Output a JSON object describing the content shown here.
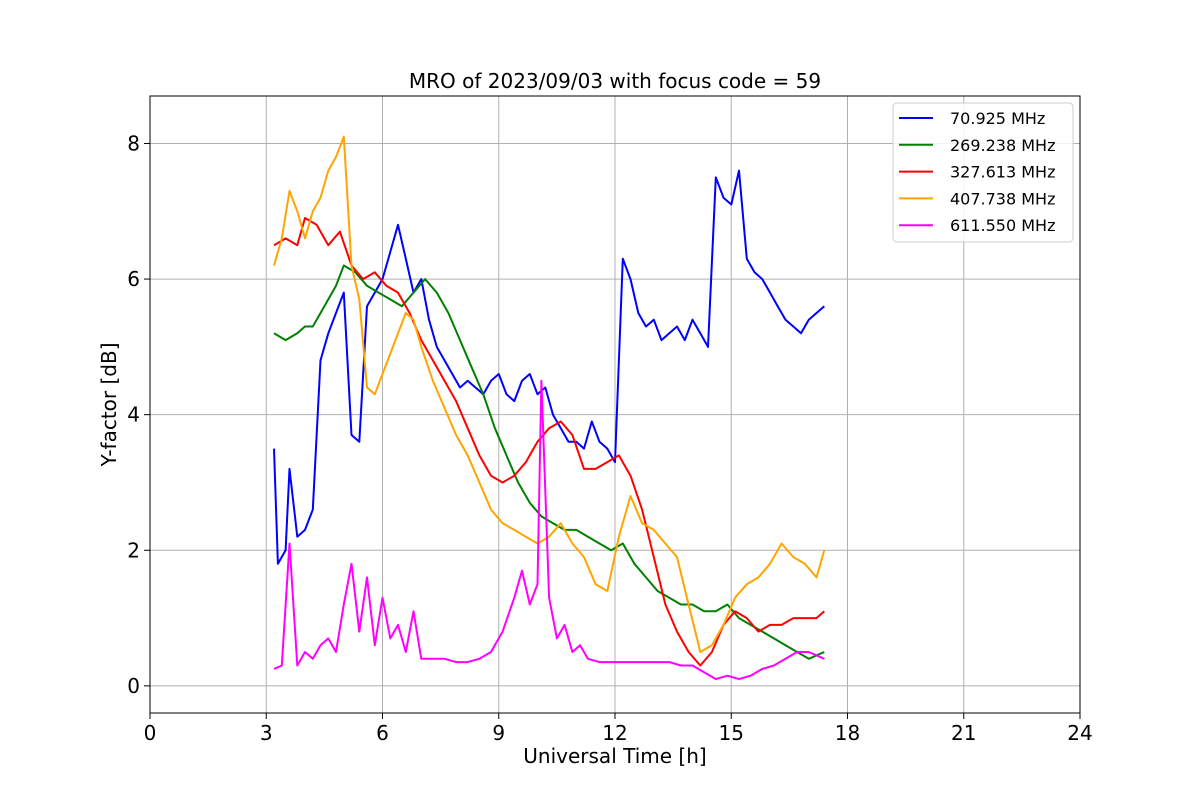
{
  "chart_data": {
    "type": "line",
    "title": "MRO of 2023/09/03 with focus code = 59",
    "xlabel": "Universal Time [h]",
    "ylabel": "Y-factor [dB]",
    "xlim": [
      0,
      24
    ],
    "ylim": [
      -0.4,
      8.7
    ],
    "xticks": [
      0,
      3,
      6,
      9,
      12,
      15,
      18,
      21,
      24
    ],
    "yticks": [
      0,
      2,
      4,
      6,
      8
    ],
    "grid": true,
    "legend_position": "top-right",
    "series": [
      {
        "name": " 70.925 MHz",
        "color": "#0000ff",
        "x": [
          3.2,
          3.3,
          3.5,
          3.6,
          3.8,
          4.0,
          4.2,
          4.4,
          4.6,
          4.8,
          5.0,
          5.2,
          5.4,
          5.6,
          5.8,
          6.0,
          6.2,
          6.4,
          6.6,
          6.8,
          7.0,
          7.2,
          7.4,
          7.6,
          7.8,
          8.0,
          8.2,
          8.4,
          8.6,
          8.8,
          9.0,
          9.2,
          9.4,
          9.6,
          9.8,
          10.0,
          10.2,
          10.4,
          10.6,
          10.8,
          11.0,
          11.2,
          11.4,
          11.6,
          11.8,
          12.0,
          12.2,
          12.4,
          12.6,
          12.8,
          13.0,
          13.2,
          13.4,
          13.6,
          13.8,
          14.0,
          14.2,
          14.4,
          14.6,
          14.8,
          15.0,
          15.2,
          15.4,
          15.6,
          15.8,
          16.0,
          16.2,
          16.4,
          16.6,
          16.8,
          17.0,
          17.2,
          17.4
        ],
        "y": [
          3.5,
          1.8,
          2.0,
          3.2,
          2.2,
          2.3,
          2.6,
          4.8,
          5.2,
          5.5,
          5.8,
          3.7,
          3.6,
          5.6,
          5.8,
          6.0,
          6.4,
          6.8,
          6.3,
          5.8,
          6.0,
          5.4,
          5.0,
          4.8,
          4.6,
          4.4,
          4.5,
          4.4,
          4.3,
          4.5,
          4.6,
          4.3,
          4.2,
          4.5,
          4.6,
          4.3,
          4.4,
          4.0,
          3.8,
          3.6,
          3.6,
          3.5,
          3.9,
          3.6,
          3.5,
          3.3,
          6.3,
          6.0,
          5.5,
          5.3,
          5.4,
          5.1,
          5.2,
          5.3,
          5.1,
          5.4,
          5.2,
          5.0,
          7.5,
          7.2,
          7.1,
          7.6,
          6.3,
          6.1,
          6.0,
          5.8,
          5.6,
          5.4,
          5.3,
          5.2,
          5.4,
          5.5,
          5.6
        ]
      },
      {
        "name": "269.238 MHz",
        "color": "#008000",
        "x": [
          3.2,
          3.5,
          3.8,
          4.0,
          4.2,
          4.5,
          4.8,
          5.0,
          5.3,
          5.6,
          5.9,
          6.2,
          6.5,
          6.8,
          7.1,
          7.4,
          7.7,
          8.0,
          8.3,
          8.6,
          8.9,
          9.2,
          9.5,
          9.8,
          10.1,
          10.4,
          10.7,
          11.0,
          11.3,
          11.6,
          11.9,
          12.2,
          12.5,
          12.8,
          13.1,
          13.4,
          13.7,
          14.0,
          14.3,
          14.6,
          14.9,
          15.2,
          15.5,
          15.8,
          16.1,
          16.4,
          16.7,
          17.0,
          17.4
        ],
        "y": [
          5.2,
          5.1,
          5.2,
          5.3,
          5.3,
          5.6,
          5.9,
          6.2,
          6.1,
          5.9,
          5.8,
          5.7,
          5.6,
          5.8,
          6.0,
          5.8,
          5.5,
          5.1,
          4.7,
          4.3,
          3.8,
          3.4,
          3.0,
          2.7,
          2.5,
          2.4,
          2.3,
          2.3,
          2.2,
          2.1,
          2.0,
          2.1,
          1.8,
          1.6,
          1.4,
          1.3,
          1.2,
          1.2,
          1.1,
          1.1,
          1.2,
          1.0,
          0.9,
          0.8,
          0.7,
          0.6,
          0.5,
          0.4,
          0.5
        ]
      },
      {
        "name": "327.613 MHz",
        "color": "#ff0000",
        "x": [
          3.2,
          3.5,
          3.8,
          4.0,
          4.3,
          4.6,
          4.9,
          5.2,
          5.5,
          5.8,
          6.1,
          6.4,
          6.7,
          7.0,
          7.3,
          7.6,
          7.9,
          8.2,
          8.5,
          8.8,
          9.1,
          9.4,
          9.7,
          10.0,
          10.3,
          10.6,
          10.9,
          11.2,
          11.5,
          11.8,
          12.1,
          12.4,
          12.7,
          13.0,
          13.3,
          13.6,
          13.9,
          14.2,
          14.5,
          14.8,
          15.1,
          15.4,
          15.7,
          16.0,
          16.3,
          16.6,
          16.9,
          17.2,
          17.4
        ],
        "y": [
          6.5,
          6.6,
          6.5,
          6.9,
          6.8,
          6.5,
          6.7,
          6.2,
          6.0,
          6.1,
          5.9,
          5.8,
          5.5,
          5.1,
          4.8,
          4.5,
          4.2,
          3.8,
          3.4,
          3.1,
          3.0,
          3.1,
          3.3,
          3.6,
          3.8,
          3.9,
          3.7,
          3.2,
          3.2,
          3.3,
          3.4,
          3.1,
          2.6,
          1.9,
          1.2,
          0.8,
          0.5,
          0.3,
          0.5,
          0.9,
          1.1,
          1.0,
          0.8,
          0.9,
          0.9,
          1.0,
          1.0,
          1.0,
          1.1
        ]
      },
      {
        "name": "407.738 MHz",
        "color": "#ffa500",
        "x": [
          3.2,
          3.4,
          3.6,
          3.8,
          4.0,
          4.2,
          4.4,
          4.6,
          4.8,
          5.0,
          5.2,
          5.4,
          5.6,
          5.8,
          6.0,
          6.2,
          6.4,
          6.6,
          6.8,
          7.0,
          7.3,
          7.6,
          7.9,
          8.2,
          8.5,
          8.8,
          9.1,
          9.4,
          9.7,
          10.0,
          10.3,
          10.6,
          10.9,
          11.2,
          11.5,
          11.8,
          12.1,
          12.4,
          12.7,
          13.0,
          13.3,
          13.6,
          13.9,
          14.2,
          14.5,
          14.8,
          15.1,
          15.4,
          15.7,
          16.0,
          16.3,
          16.6,
          16.9,
          17.2,
          17.4
        ],
        "y": [
          6.2,
          6.6,
          7.3,
          7.0,
          6.6,
          7.0,
          7.2,
          7.6,
          7.8,
          8.1,
          6.2,
          5.7,
          4.4,
          4.3,
          4.6,
          4.9,
          5.2,
          5.5,
          5.4,
          5.0,
          4.5,
          4.1,
          3.7,
          3.4,
          3.0,
          2.6,
          2.4,
          2.3,
          2.2,
          2.1,
          2.2,
          2.4,
          2.1,
          1.9,
          1.5,
          1.4,
          2.2,
          2.8,
          2.4,
          2.3,
          2.1,
          1.9,
          1.2,
          0.5,
          0.6,
          0.9,
          1.3,
          1.5,
          1.6,
          1.8,
          2.1,
          1.9,
          1.8,
          1.6,
          2.0
        ]
      },
      {
        "name": "611.550 MHz",
        "color": "#ff00ff",
        "x": [
          3.2,
          3.4,
          3.6,
          3.8,
          4.0,
          4.2,
          4.4,
          4.6,
          4.8,
          5.0,
          5.2,
          5.4,
          5.6,
          5.8,
          6.0,
          6.2,
          6.4,
          6.6,
          6.8,
          7.0,
          7.3,
          7.6,
          7.9,
          8.2,
          8.5,
          8.8,
          9.1,
          9.4,
          9.6,
          9.8,
          10.0,
          10.1,
          10.3,
          10.5,
          10.7,
          10.9,
          11.1,
          11.3,
          11.6,
          11.9,
          12.2,
          12.5,
          12.8,
          13.1,
          13.4,
          13.7,
          14.0,
          14.3,
          14.6,
          14.9,
          15.2,
          15.5,
          15.8,
          16.1,
          16.4,
          16.7,
          17.0,
          17.4
        ],
        "y": [
          0.25,
          0.3,
          2.1,
          0.3,
          0.5,
          0.4,
          0.6,
          0.7,
          0.5,
          1.2,
          1.8,
          0.8,
          1.6,
          0.6,
          1.3,
          0.7,
          0.9,
          0.5,
          1.1,
          0.4,
          0.4,
          0.4,
          0.35,
          0.35,
          0.4,
          0.5,
          0.8,
          1.3,
          1.7,
          1.2,
          1.5,
          4.5,
          1.3,
          0.7,
          0.9,
          0.5,
          0.6,
          0.4,
          0.35,
          0.35,
          0.35,
          0.35,
          0.35,
          0.35,
          0.35,
          0.3,
          0.3,
          0.2,
          0.1,
          0.15,
          0.1,
          0.15,
          0.25,
          0.3,
          0.4,
          0.5,
          0.5,
          0.4
        ]
      }
    ]
  }
}
